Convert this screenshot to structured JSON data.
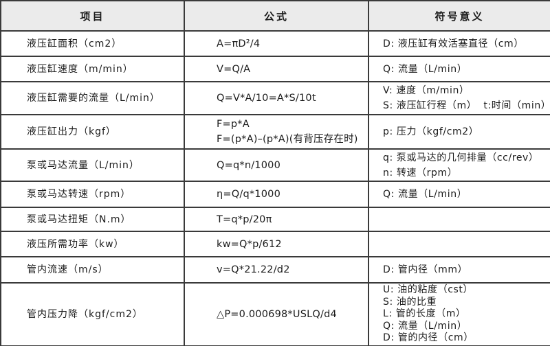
{
  "table": {
    "headers": [
      "项目",
      "公式",
      "符号意义"
    ],
    "rows": [
      {
        "item": "液压缸面积（cm2）",
        "formulas": [
          "A=πD²/4"
        ],
        "symbols": [
          "D: 液压缸有效活塞直径（cm）"
        ]
      },
      {
        "item": "液压缸速度（m/min）",
        "formulas": [
          "V=Q/A"
        ],
        "symbols": [
          "Q: 流量（L/min）"
        ]
      },
      {
        "item": "液压缸需要的流量（L/min）",
        "formulas": [
          "Q=V*A/10=A*S/10t"
        ],
        "symbols": [
          "V: 速度（m/min）",
          "S: 液压缸行程（m）  t:时间（min）"
        ]
      },
      {
        "item": "液压缸出力（kgf）",
        "formulas": [
          "F=p*A",
          "F=(p*A)–(p*A)(有背压存在时)"
        ],
        "symbols": [
          "p: 压力（kgf/cm2）"
        ]
      },
      {
        "item": "泵或马达流量（L/min）",
        "formulas": [
          "Q=q*n/1000"
        ],
        "symbols": [
          "q: 泵或马达的几何排量（cc/rev）",
          "n: 转速（rpm）"
        ]
      },
      {
        "item": "泵或马达转速（rpm）",
        "formulas": [
          "η=Q/q*1000"
        ],
        "symbols": [
          "Q: 流量（L/min）"
        ]
      },
      {
        "item": "泵或马达扭矩（N.m）",
        "formulas": [
          "T=q*p/20π"
        ],
        "symbols": []
      },
      {
        "item": "液压所需功率（kw）",
        "formulas": [
          "kw=Q*p/612"
        ],
        "symbols": []
      },
      {
        "item": "管内流速（m/s）",
        "formulas": [
          "v=Q*21.22/d2"
        ],
        "symbols": [
          "D: 管内径（mm）"
        ]
      },
      {
        "item": "管内压力降（kgf/cm2）",
        "formulas": [
          "△P=0.000698*USLQ/d4"
        ],
        "symbols": [
          "U: 油的粘度（cst）",
          "S: 油的比重",
          "L: 管的长度（m）",
          "Q: 流量（L/min）",
          "D: 管的内径（cm）"
        ]
      }
    ]
  },
  "colors": {
    "background": "#ffffff",
    "header_bg": "#ebebeb",
    "grid_border": "#3a3a3a",
    "outer_border": "#262626",
    "text": "#1b1b1b"
  }
}
